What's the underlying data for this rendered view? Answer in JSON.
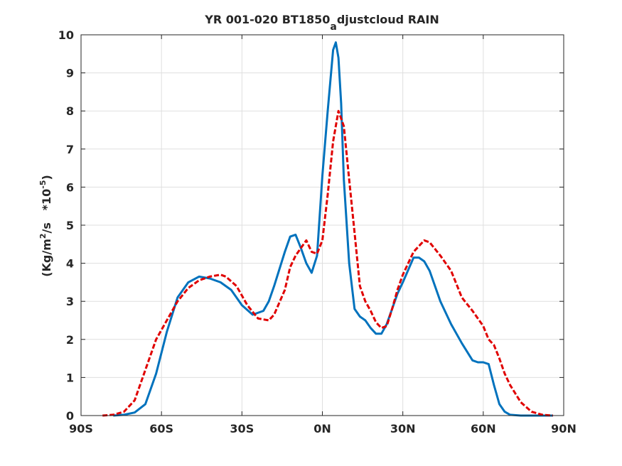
{
  "chart_data": {
    "type": "line",
    "title": "YR 001-020 BT1850",
    "title_subscript": "a",
    "title_rest": "djustcloud RAIN",
    "ylabel": {
      "open": "(Kg/m",
      "exp1": "2",
      "mid": "/s   *10",
      "exp2": "-5",
      "close": ")"
    },
    "xlim": [
      -90,
      90
    ],
    "ylim": [
      0,
      10
    ],
    "grid": true,
    "x_ticks": [
      {
        "value": -90,
        "label": "90S"
      },
      {
        "value": -60,
        "label": "60S"
      },
      {
        "value": -30,
        "label": "30S"
      },
      {
        "value": 0,
        "label": "0N"
      },
      {
        "value": 30,
        "label": "30N"
      },
      {
        "value": 60,
        "label": "60N"
      },
      {
        "value": 90,
        "label": "90N"
      }
    ],
    "y_ticks": [
      {
        "value": 0,
        "label": "0"
      },
      {
        "value": 1,
        "label": "1"
      },
      {
        "value": 2,
        "label": "2"
      },
      {
        "value": 3,
        "label": "3"
      },
      {
        "value": 4,
        "label": "4"
      },
      {
        "value": 5,
        "label": "5"
      },
      {
        "value": 6,
        "label": "6"
      },
      {
        "value": 7,
        "label": "7"
      },
      {
        "value": 8,
        "label": "8"
      },
      {
        "value": 9,
        "label": "9"
      },
      {
        "value": 10,
        "label": "10"
      }
    ],
    "series": [
      {
        "color": "#0072bd",
        "dash": "solid",
        "x": [
          -78,
          -74,
          -70,
          -66,
          -62,
          -58,
          -54,
          -50,
          -46,
          -42,
          -38,
          -34,
          -30,
          -26,
          -22,
          -20,
          -18,
          -14,
          -12,
          -10,
          -8,
          -6,
          -4,
          -2,
          0,
          2,
          4,
          5,
          6,
          7,
          8,
          10,
          12,
          14,
          16,
          18,
          20,
          22,
          24,
          26,
          28,
          30,
          34,
          36,
          38,
          40,
          44,
          48,
          52,
          56,
          58,
          60,
          62,
          64,
          66,
          68,
          70,
          74,
          78,
          82,
          86
        ],
        "y": [
          0,
          0.02,
          0.08,
          0.3,
          1.1,
          2.2,
          3.1,
          3.5,
          3.65,
          3.6,
          3.5,
          3.3,
          2.9,
          2.65,
          2.75,
          3.0,
          3.4,
          4.3,
          4.7,
          4.75,
          4.4,
          4.0,
          3.75,
          4.2,
          6.3,
          8.0,
          9.6,
          9.8,
          9.4,
          8.2,
          6.2,
          4.0,
          2.8,
          2.6,
          2.5,
          2.3,
          2.15,
          2.15,
          2.4,
          2.8,
          3.2,
          3.5,
          4.15,
          4.15,
          4.05,
          3.8,
          3.0,
          2.4,
          1.9,
          1.45,
          1.4,
          1.4,
          1.35,
          0.8,
          0.3,
          0.1,
          0.02,
          0,
          0,
          0,
          0
        ]
      },
      {
        "color": "#e00000",
        "dash": "dashed",
        "x": [
          -82,
          -78,
          -74,
          -70,
          -66,
          -62,
          -58,
          -54,
          -50,
          -46,
          -42,
          -38,
          -36,
          -32,
          -28,
          -24,
          -20,
          -18,
          -14,
          -12,
          -10,
          -8,
          -6,
          -4,
          -2,
          0,
          2,
          4,
          6,
          8,
          10,
          12,
          14,
          16,
          18,
          20,
          22,
          24,
          26,
          28,
          30,
          34,
          38,
          40,
          44,
          48,
          52,
          56,
          60,
          62,
          64,
          66,
          68,
          70,
          74,
          78,
          82,
          86
        ],
        "y": [
          0,
          0.02,
          0.1,
          0.4,
          1.2,
          2.0,
          2.5,
          3.0,
          3.35,
          3.55,
          3.65,
          3.7,
          3.65,
          3.4,
          2.9,
          2.55,
          2.5,
          2.65,
          3.3,
          3.9,
          4.2,
          4.4,
          4.6,
          4.3,
          4.25,
          4.6,
          5.8,
          7.2,
          8.0,
          7.6,
          6.2,
          4.8,
          3.4,
          3.0,
          2.75,
          2.45,
          2.3,
          2.35,
          2.8,
          3.3,
          3.7,
          4.3,
          4.6,
          4.55,
          4.2,
          3.8,
          3.1,
          2.75,
          2.35,
          2.0,
          1.85,
          1.5,
          1.1,
          0.8,
          0.35,
          0.1,
          0.02,
          0
        ]
      }
    ]
  }
}
